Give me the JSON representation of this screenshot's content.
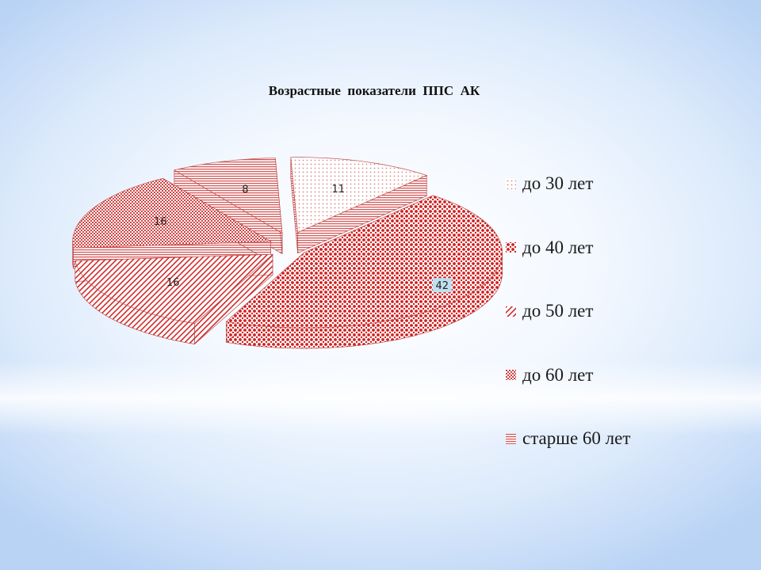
{
  "chart_data": {
    "type": "pie",
    "title": "Возрастные  показатели  ППС  АК",
    "categories": [
      "до 30 лет",
      "до 40 лет",
      "до 50 лет",
      "до 60 лет",
      "старше 60 лет"
    ],
    "values": [
      11,
      42,
      16,
      16,
      8
    ],
    "data_labels": [
      "11",
      "42",
      "16",
      "16",
      "8"
    ],
    "legend_position": "right",
    "exploded": true,
    "three_d": true,
    "colors": {
      "pattern_red": "#cc1f1f",
      "pattern_light": "#e8a5a5",
      "value_42_box": "#bfe0f0"
    }
  }
}
